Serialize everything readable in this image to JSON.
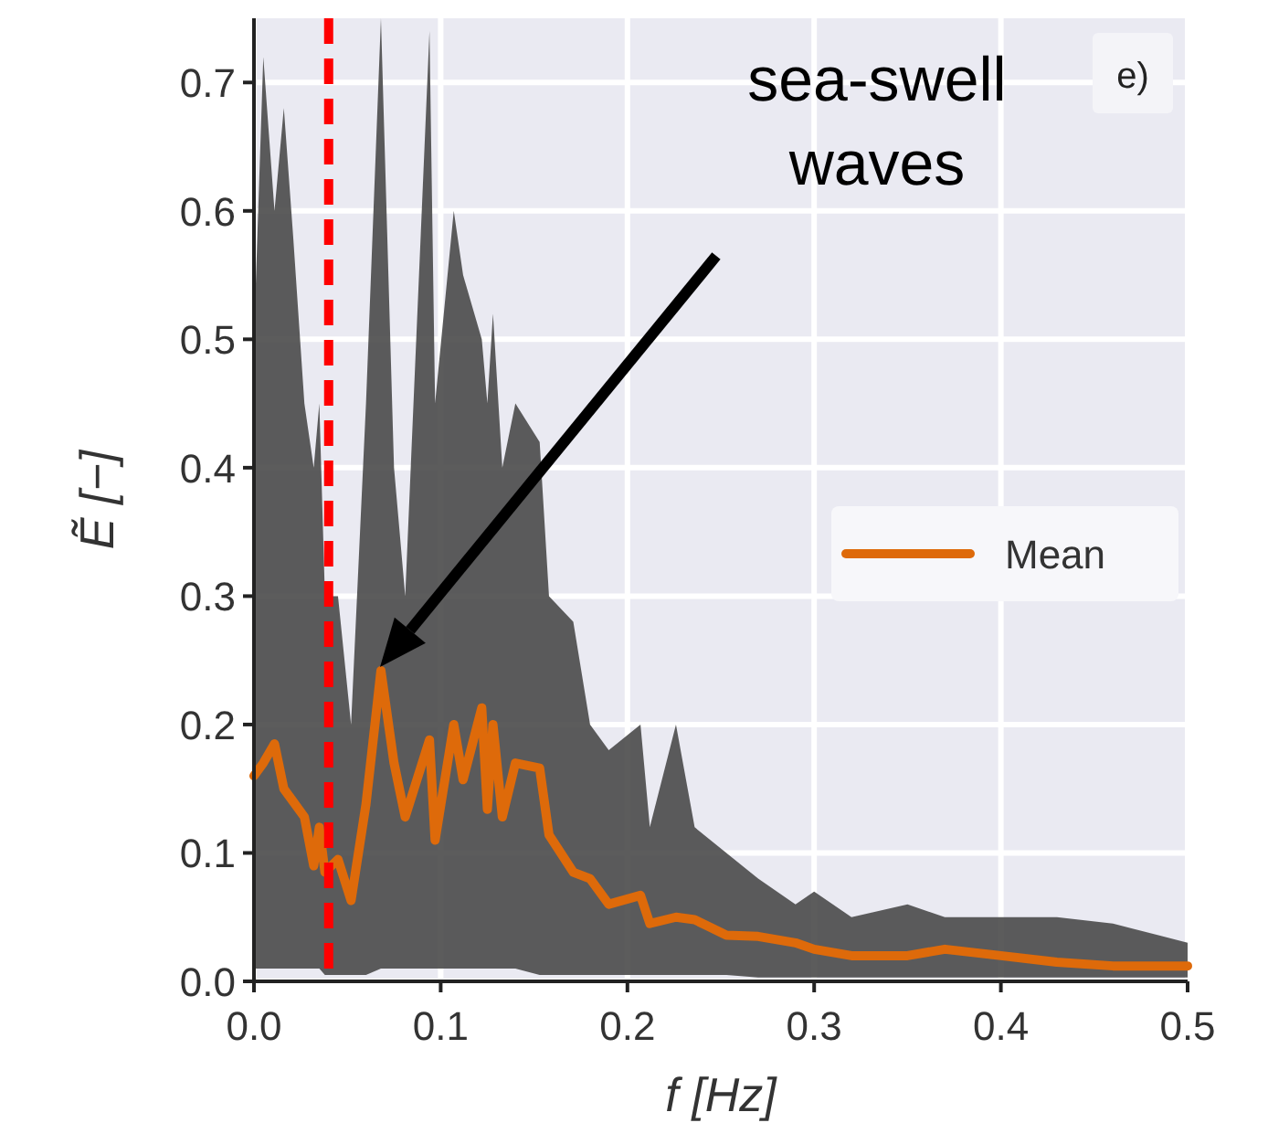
{
  "chart_data": {
    "type": "line",
    "xlabel": "f [Hz]",
    "ylabel": "Ẽ [−]",
    "x": [
      0,
      0.005,
      0.011,
      0.016,
      0.021,
      0.027,
      0.032,
      0.035,
      0.038,
      0.045,
      0.052,
      0.06,
      0.068,
      0.075,
      0.081,
      0.094,
      0.097,
      0.107,
      0.112,
      0.122,
      0.125,
      0.128,
      0.133,
      0.14,
      0.153,
      0.158,
      0.171,
      0.18,
      0.19,
      0.207,
      0.212,
      0.226,
      0.236,
      0.253,
      0.27,
      0.29,
      0.3,
      0.32,
      0.35,
      0.37,
      0.4,
      0.43,
      0.46,
      0.5
    ],
    "series": [
      {
        "name": "Mean",
        "color": "#de6a0a",
        "values": [
          0.16,
          0.17,
          0.185,
          0.15,
          0.14,
          0.128,
          0.09,
          0.12,
          0.085,
          0.095,
          0.063,
          0.138,
          0.242,
          0.17,
          0.128,
          0.188,
          0.11,
          0.2,
          0.157,
          0.213,
          0.134,
          0.2,
          0.128,
          0.17,
          0.166,
          0.114,
          0.085,
          0.08,
          0.06,
          0.067,
          0.045,
          0.05,
          0.048,
          0.036,
          0.035,
          0.03,
          0.025,
          0.02,
          0.02,
          0.025,
          0.02,
          0.015,
          0.012,
          0.012
        ],
        "lower": [
          0.01,
          0.01,
          0.01,
          0.01,
          0.01,
          0.01,
          0.01,
          0.01,
          0.005,
          0.005,
          0.005,
          0.005,
          0.01,
          0.01,
          0.01,
          0.01,
          0.01,
          0.01,
          0.01,
          0.01,
          0.01,
          0.01,
          0.01,
          0.01,
          0.005,
          0.005,
          0.005,
          0.005,
          0.005,
          0.005,
          0.005,
          0.005,
          0.005,
          0.005,
          0.003,
          0.003,
          0.003,
          0.003,
          0.003,
          0.003,
          0.003,
          0.003,
          0.003,
          0.003
        ],
        "upper": [
          0.5,
          0.72,
          0.6,
          0.68,
          0.58,
          0.45,
          0.4,
          0.45,
          0.3,
          0.3,
          0.2,
          0.45,
          0.75,
          0.4,
          0.3,
          0.74,
          0.45,
          0.6,
          0.55,
          0.5,
          0.45,
          0.52,
          0.4,
          0.45,
          0.42,
          0.3,
          0.28,
          0.2,
          0.18,
          0.2,
          0.12,
          0.2,
          0.12,
          0.1,
          0.08,
          0.06,
          0.07,
          0.05,
          0.06,
          0.05,
          0.05,
          0.05,
          0.045,
          0.03
        ]
      }
    ],
    "xlim": [
      0,
      0.5
    ],
    "xticks": [
      {
        "value": 0,
        "label": "0.0"
      },
      0.1,
      0.2,
      0.3,
      0.4,
      0.5
    ],
    "ylim": [
      0,
      0.75
    ],
    "yticks": [
      {
        "value": 0,
        "label": "0.0"
      },
      0.1,
      0.2,
      0.3,
      0.4,
      0.5,
      0.6,
      0.7
    ],
    "grid": true,
    "legend": "right",
    "ref_lines": [
      {
        "axis": "x",
        "value": 0.04,
        "color": "#ff0000",
        "line_style": "dashed"
      }
    ],
    "annotations": [
      "e)",
      "sea-swell waves"
    ]
  }
}
